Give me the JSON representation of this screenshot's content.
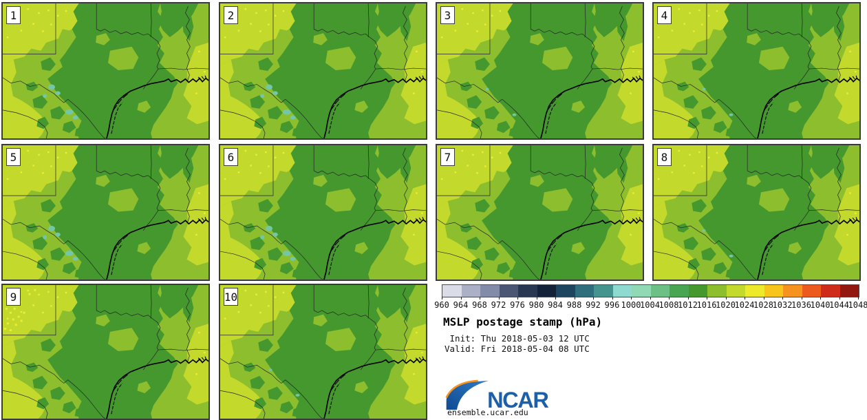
{
  "page": {
    "background": "#ffffff"
  },
  "product": {
    "title": "MSLP postage stamp (hPa)",
    "init_label": " Init: Thu 2018-05-03 12 UTC",
    "valid_label": "Valid: Fri 2018-05-04 08 UTC"
  },
  "panels": [
    {
      "number": "1",
      "teal_spots": "large",
      "extra_specks": false
    },
    {
      "number": "2",
      "teal_spots": "large",
      "extra_specks": false
    },
    {
      "number": "3",
      "teal_spots": "small",
      "extra_specks": false
    },
    {
      "number": "4",
      "teal_spots": "small",
      "extra_specks": false
    },
    {
      "number": "5",
      "teal_spots": "large",
      "extra_specks": false
    },
    {
      "number": "6",
      "teal_spots": "large",
      "extra_specks": false
    },
    {
      "number": "7",
      "teal_spots": "none",
      "extra_specks": false
    },
    {
      "number": "8",
      "teal_spots": "small",
      "extra_specks": false
    },
    {
      "number": "9",
      "teal_spots": "none",
      "extra_specks": true
    },
    {
      "number": "10",
      "teal_spots": "small",
      "extra_specks": false
    }
  ],
  "colorbar": {
    "tick_labels": [
      "960",
      "964",
      "968",
      "972",
      "976",
      "980",
      "984",
      "988",
      "992",
      "996",
      "1000",
      "1004",
      "1008",
      "1012",
      "1016",
      "1020",
      "1024",
      "1028",
      "1032",
      "1036",
      "1040",
      "1044",
      "1048"
    ],
    "box_colors": [
      "#dadce8",
      "#abb0c6",
      "#828ba8",
      "#4a5674",
      "#2a3752",
      "#142239",
      "#1d4560",
      "#2f6e7d",
      "#45948f",
      "#8ed9d0",
      "#90d9b4",
      "#6cbf85",
      "#4aa553",
      "#44982e",
      "#8dbe2d",
      "#c3d92c",
      "#eeea2b",
      "#f8c51c",
      "#f6921f",
      "#ec5a1e",
      "#cf2b1b",
      "#911710"
    ],
    "units": "hPa"
  },
  "map_colors": {
    "mid": "#8dbe2d",
    "dark": "#44982e",
    "bright": "#c3d92c",
    "speck": "#eeee35",
    "teal": "#74c6a8",
    "border": "#222222",
    "coast": "#000000"
  },
  "logo": {
    "name": "NCAR",
    "url": "ensemble.ucar.edu",
    "blue": "#1d5fa8",
    "dark_blue": "#0f4a92",
    "orange": "#f6921f"
  }
}
